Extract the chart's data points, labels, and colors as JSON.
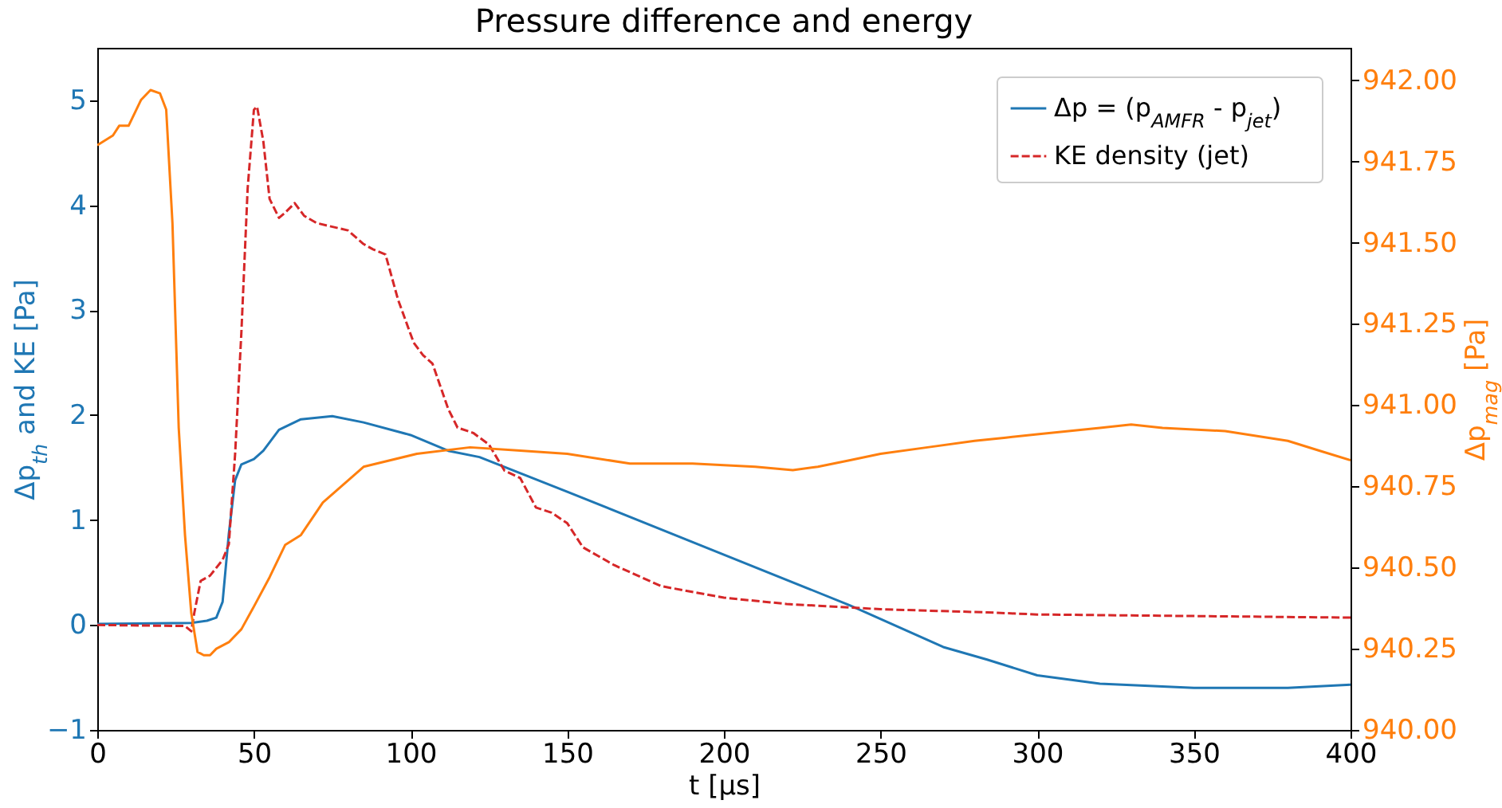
{
  "chart_data": {
    "type": "line",
    "title": "Pressure difference and energy",
    "xlabel": "t [μs]",
    "ylabel": "Δp$_{th}$ and KE [Pa]",
    "y2label": "Δp$_{mag}$ [Pa]",
    "xlim": [
      0,
      400
    ],
    "xticks": [
      0,
      50,
      100,
      150,
      200,
      250,
      300,
      350,
      400
    ],
    "ylim": [
      -1,
      5.5
    ],
    "yticks": [
      -1,
      0,
      1,
      2,
      3,
      4,
      5
    ],
    "y2lim": [
      940,
      942.1
    ],
    "y2ticks": [
      {
        "value": 940,
        "label": "940.00"
      },
      {
        "value": 940.25,
        "label": "940.25"
      },
      {
        "value": 940.5,
        "label": "940.50"
      },
      {
        "value": 940.75,
        "label": "940.75"
      },
      {
        "value": 941,
        "label": "941.00"
      },
      {
        "value": 941.25,
        "label": "941.25"
      },
      {
        "value": 941.5,
        "label": "941.50"
      },
      {
        "value": 941.75,
        "label": "941.75"
      },
      {
        "value": 942,
        "label": "942.00"
      }
    ],
    "legend": "top right",
    "series": [
      {
        "name": "Δp = (p$_{AMFR}$ - p$_{jet}$)",
        "color": "#1f77b4",
        "line_style": "solid",
        "x": [
          0,
          30,
          35,
          38,
          40,
          42,
          44,
          46,
          50,
          53,
          58,
          65,
          75,
          85,
          100,
          112,
          122,
          150,
          200,
          240,
          270,
          284,
          300,
          320,
          350,
          380,
          400
        ],
        "values": [
          0.01,
          0.02,
          0.04,
          0.07,
          0.22,
          0.87,
          1.38,
          1.53,
          1.58,
          1.66,
          1.86,
          1.96,
          1.99,
          1.93,
          1.81,
          1.66,
          1.6,
          1.27,
          0.67,
          0.19,
          -0.21,
          -0.33,
          -0.48,
          -0.56,
          -0.6,
          -0.6,
          -0.57
        ]
      },
      {
        "name": "KE density (jet)",
        "color": "#d62728",
        "line_style": "dashed",
        "x": [
          0,
          28,
          30,
          31,
          33,
          36,
          40,
          42,
          44,
          46,
          48,
          50,
          51,
          53,
          55,
          58,
          60,
          63,
          66,
          70,
          80,
          85,
          88,
          92,
          96,
          101,
          104,
          107,
          112,
          115,
          120,
          125,
          130,
          135,
          140,
          145,
          150,
          155,
          165,
          180,
          200,
          220,
          250,
          284,
          300,
          400
        ],
        "values": [
          0,
          -0.01,
          -0.06,
          0.12,
          0.42,
          0.47,
          0.62,
          0.77,
          1.63,
          2.79,
          4.16,
          4.91,
          4.94,
          4.61,
          4.06,
          3.88,
          3.93,
          4.02,
          3.9,
          3.83,
          3.76,
          3.63,
          3.58,
          3.53,
          3.1,
          2.69,
          2.57,
          2.49,
          2.06,
          1.88,
          1.83,
          1.72,
          1.47,
          1.4,
          1.12,
          1.07,
          0.97,
          0.74,
          0.57,
          0.37,
          0.26,
          0.2,
          0.15,
          0.12,
          0.1,
          0.07
        ]
      },
      {
        "color": "#ff7f0e",
        "line_style": "solid",
        "axis": "y2",
        "x": [
          0,
          5,
          7,
          10,
          14,
          17,
          20,
          22,
          24,
          26,
          28,
          30,
          32,
          34,
          36,
          38,
          42,
          46,
          50,
          55,
          60,
          65,
          72,
          85,
          102,
          119,
          135,
          150,
          170,
          190,
          210,
          222,
          230,
          240,
          250,
          265,
          280,
          290,
          300,
          320,
          330,
          340,
          360,
          380,
          390,
          400
        ],
        "values": [
          941.8,
          941.83,
          941.86,
          941.86,
          941.94,
          941.97,
          941.96,
          941.91,
          941.56,
          940.93,
          940.6,
          940.36,
          940.24,
          940.23,
          940.23,
          940.25,
          940.27,
          940.31,
          940.38,
          940.47,
          940.57,
          940.6,
          940.7,
          940.81,
          940.85,
          940.87,
          940.86,
          940.85,
          940.82,
          940.82,
          940.81,
          940.8,
          940.81,
          940.83,
          940.85,
          940.87,
          940.89,
          940.9,
          940.91,
          940.93,
          940.94,
          940.93,
          940.92,
          940.89,
          940.86,
          940.83
        ]
      }
    ]
  }
}
